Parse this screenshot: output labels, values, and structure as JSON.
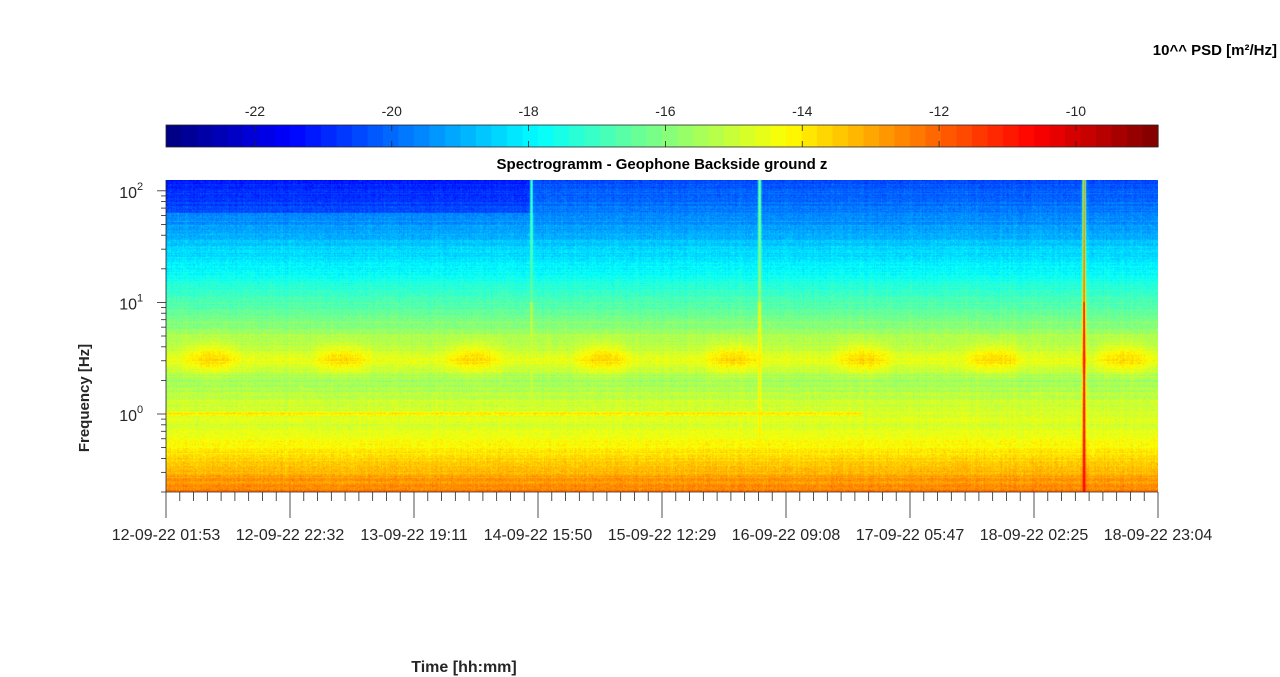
{
  "chart_data": {
    "type": "heatmap",
    "title": "Spectrogramm - Geophone Backside ground z",
    "xlabel": "Time [hh:mm]",
    "ylabel": "Frequency [Hz]",
    "colorbar_label": "10^^ PSD [m²/Hz]",
    "colormap": "jet",
    "colorbar_location": "top",
    "clim": [
      -23.3,
      -8.8
    ],
    "colorbar_ticks": [
      "-22",
      "-20",
      "-18",
      "-16",
      "-14",
      "-12",
      "-10"
    ],
    "colorbar_tick_values": [
      -22,
      -20,
      -18,
      -16,
      -14,
      -12,
      -10
    ],
    "y_scale": "log",
    "ylim": [
      0.2,
      125
    ],
    "y_ticks": [
      {
        "value": 1,
        "base": "10",
        "exp": "0"
      },
      {
        "value": 10,
        "base": "10",
        "exp": "1"
      },
      {
        "value": 100,
        "base": "10",
        "exp": "2"
      }
    ],
    "x_ticks": [
      "12-09-22  01:53",
      "12-09-22  22:32",
      "13-09-22  19:11",
      "14-09-22  15:50",
      "15-09-22  12:29",
      "16-09-22  09:08",
      "17-09-22  05:47",
      "18-09-22  02:25",
      "18-09-22  23:04"
    ],
    "grid": false,
    "psd_profile": {
      "frequencies_hz": [
        0.2,
        0.3,
        0.5,
        0.8,
        1.0,
        2.0,
        3.0,
        5.0,
        8.0,
        15.0,
        30.0,
        60.0,
        125.0
      ],
      "log10_psd": [
        -12.3,
        -13.2,
        -14.1,
        -14.8,
        -14.7,
        -15.6,
        -14.6,
        -15.5,
        -16.4,
        -17.4,
        -18.5,
        -19.6,
        -20.4
      ]
    },
    "events": [
      {
        "label": "transient",
        "time_fraction": 0.925,
        "peak_log10_psd": -10.5
      },
      {
        "label": "transient",
        "time_fraction": 0.598,
        "peak_log10_psd": -14.0
      },
      {
        "label": "transient",
        "time_fraction": 0.368,
        "peak_log10_psd": -15.0
      }
    ]
  }
}
